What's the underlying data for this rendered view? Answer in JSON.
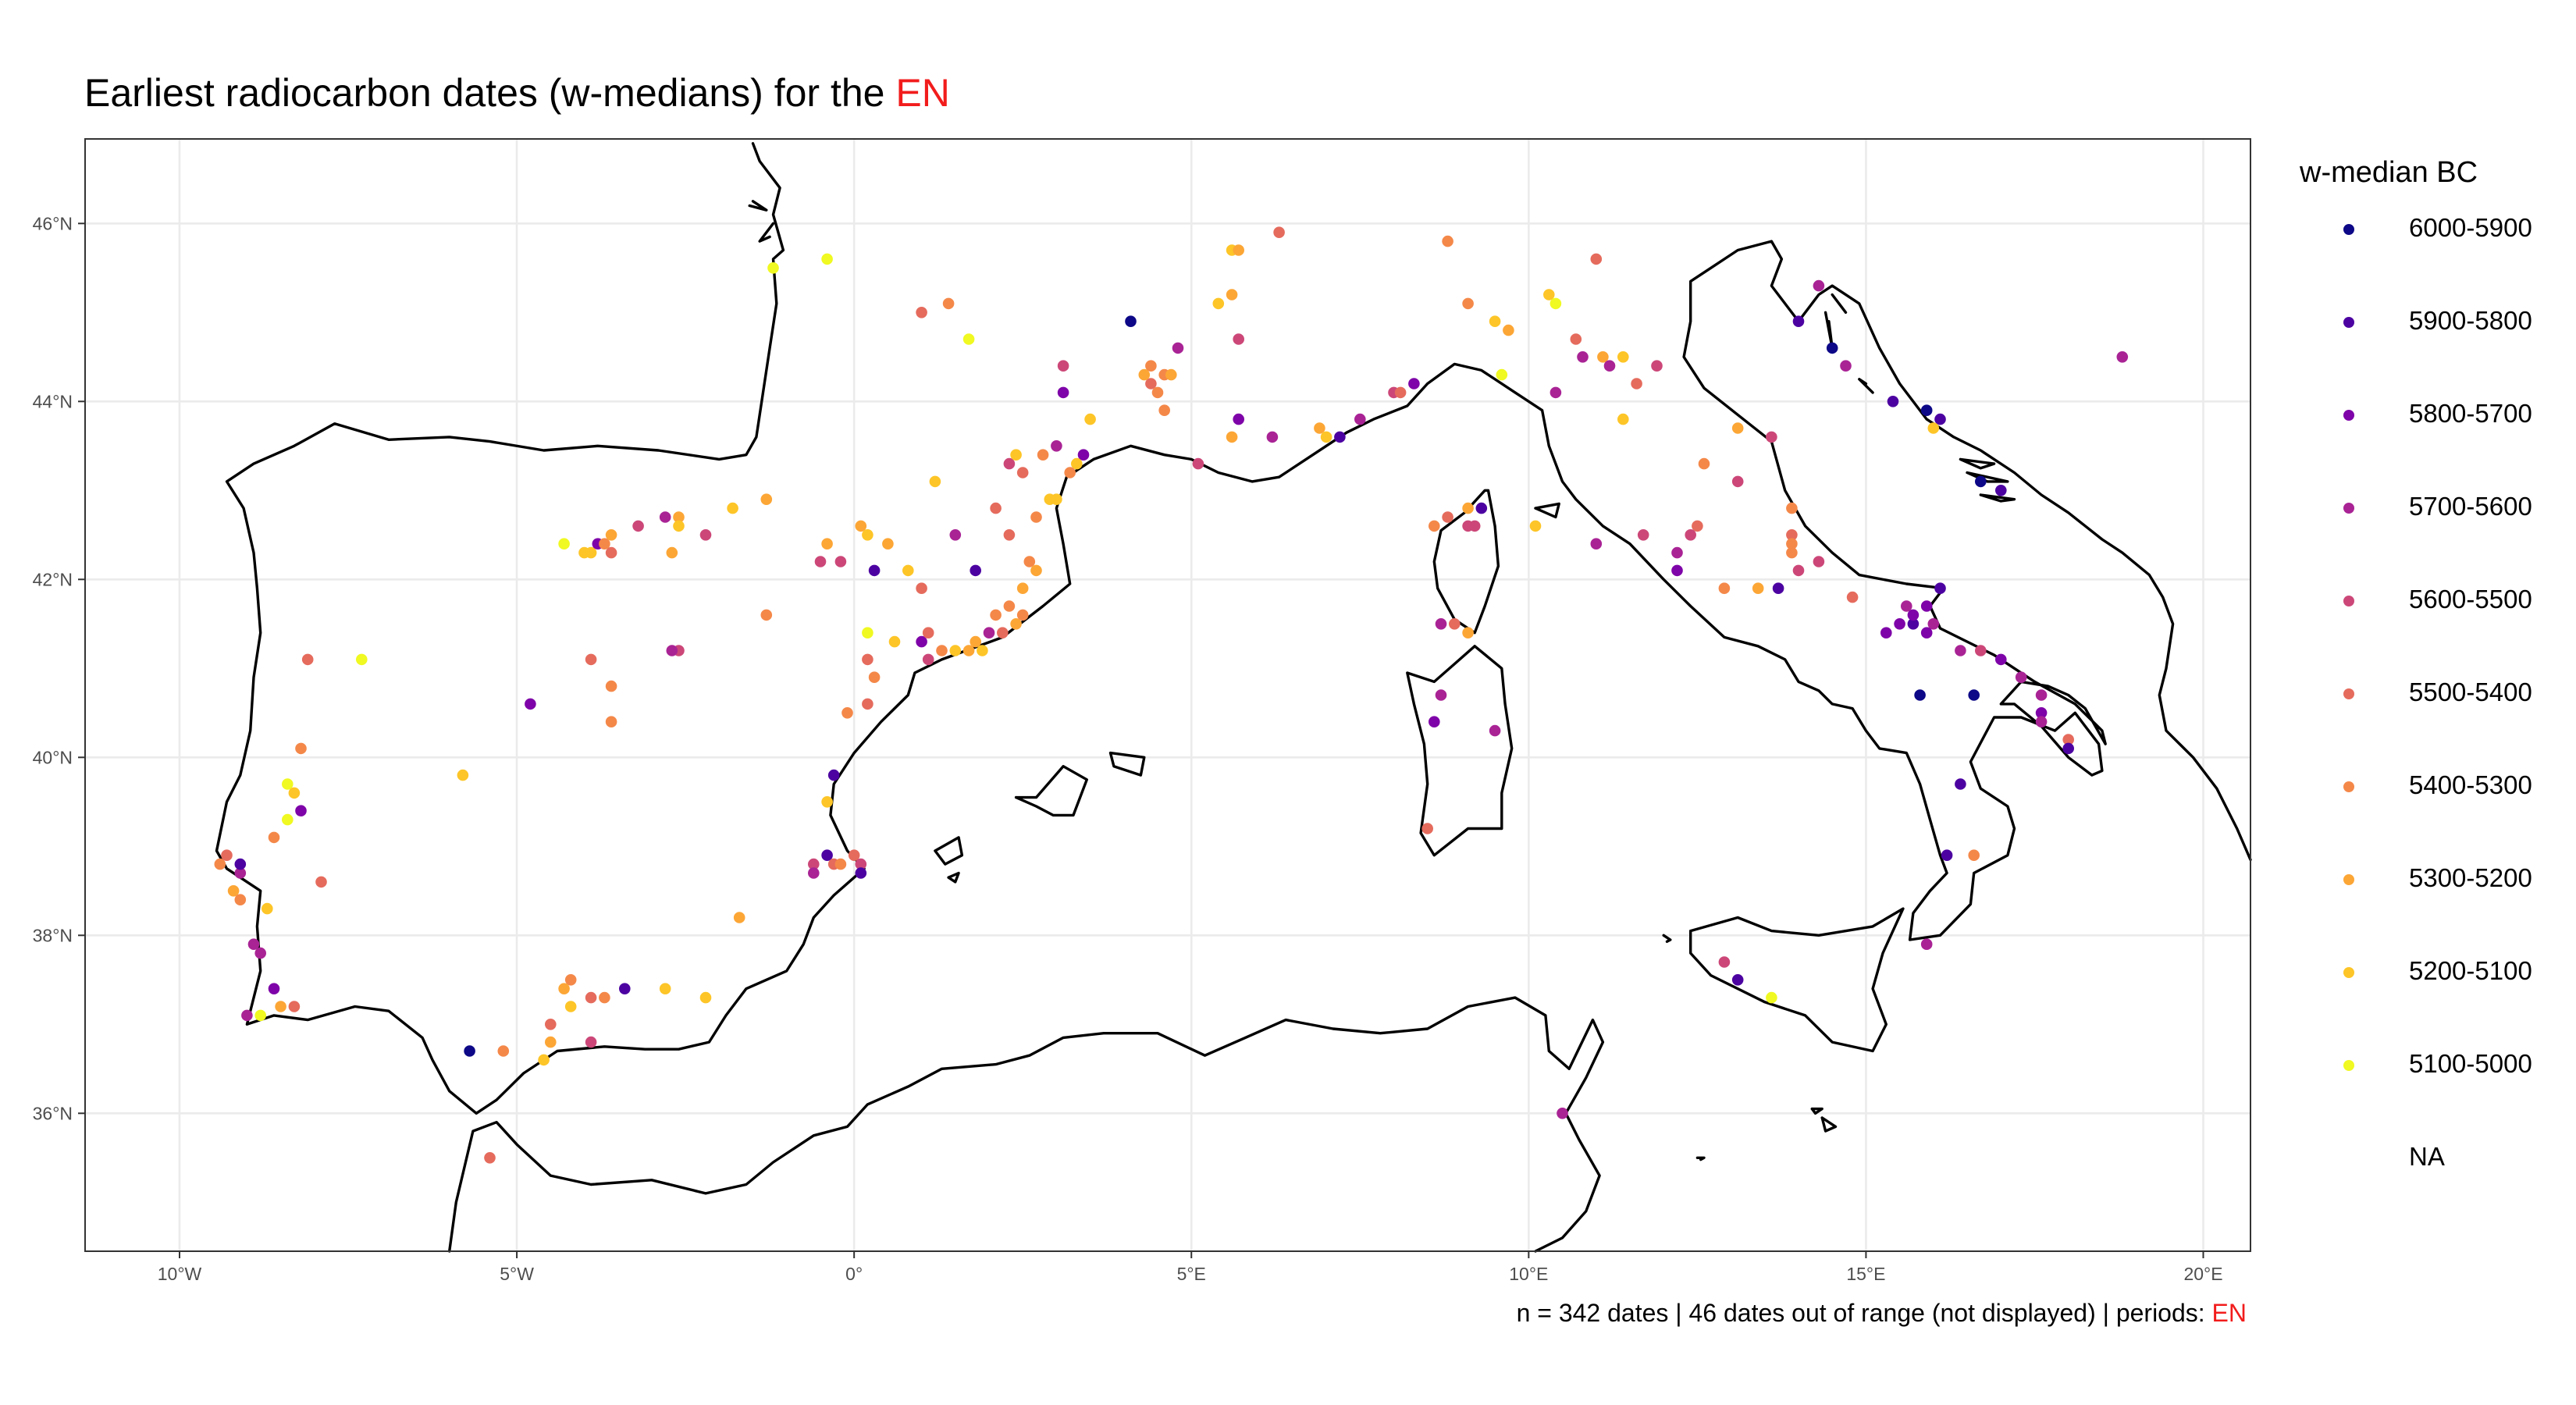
{
  "title": {
    "prefix": "Earliest radiocarbon dates (w-medians) for the ",
    "highlight": "EN"
  },
  "caption": {
    "prefix": "n = 342 dates | 46 dates out of range (not displayed) | periods: ",
    "highlight": "EN"
  },
  "colors": {
    "highlight": "#f21c1c",
    "coastline": "#000000",
    "grid": "#ebebeb"
  },
  "legend": {
    "title": "w-median BC",
    "items": [
      {
        "label": "6000-5900",
        "color": "#0d0887"
      },
      {
        "label": "5900-5800",
        "color": "#4c02a1"
      },
      {
        "label": "5800-5700",
        "color": "#7e03a8"
      },
      {
        "label": "5700-5600",
        "color": "#a92395"
      },
      {
        "label": "5600-5500",
        "color": "#cc4778"
      },
      {
        "label": "5500-5400",
        "color": "#e56b5d"
      },
      {
        "label": "5400-5300",
        "color": "#f48849"
      },
      {
        "label": "5300-5200",
        "color": "#fca636"
      },
      {
        "label": "5200-5100",
        "color": "#fdc527"
      },
      {
        "label": "5100-5000",
        "color": "#f0f921"
      },
      {
        "label": "NA",
        "color": ""
      }
    ]
  },
  "map_data": {
    "type": "scatter",
    "xlim": [
      -11.4,
      20.7
    ],
    "ylim": [
      34.45,
      46.95
    ],
    "x_ticks": [
      {
        "value": -10,
        "label": "10°W"
      },
      {
        "value": -5,
        "label": "5°W"
      },
      {
        "value": 0,
        "label": "0°"
      },
      {
        "value": 5,
        "label": "5°E"
      },
      {
        "value": 10,
        "label": "10°E"
      },
      {
        "value": 15,
        "label": "15°E"
      },
      {
        "value": 20,
        "label": "20°E"
      }
    ],
    "y_ticks": [
      {
        "value": 36,
        "label": "36°N"
      },
      {
        "value": 38,
        "label": "38°N"
      },
      {
        "value": 40,
        "label": "40°N"
      },
      {
        "value": 42,
        "label": "42°N"
      },
      {
        "value": 44,
        "label": "44°N"
      },
      {
        "value": 46,
        "label": "46°N"
      }
    ],
    "grid": true,
    "points": [
      [
        -1.2,
        45.5,
        9
      ],
      [
        -0.4,
        45.6,
        9
      ],
      [
        1.0,
        45.0,
        5
      ],
      [
        1.4,
        45.1,
        6
      ],
      [
        1.7,
        44.7,
        9
      ],
      [
        5.6,
        45.7,
        8
      ],
      [
        5.7,
        45.7,
        7
      ],
      [
        6.3,
        45.9,
        5
      ],
      [
        5.6,
        45.2,
        7
      ],
      [
        5.4,
        45.1,
        8
      ],
      [
        5.7,
        44.7,
        4
      ],
      [
        4.1,
        44.9,
        0
      ],
      [
        3.1,
        44.4,
        4
      ],
      [
        3.1,
        44.1,
        2
      ],
      [
        4.4,
        44.4,
        6
      ],
      [
        4.6,
        44.3,
        6
      ],
      [
        4.8,
        44.6,
        3
      ],
      [
        4.4,
        44.2,
        5
      ],
      [
        4.3,
        44.3,
        7
      ],
      [
        4.5,
        44.1,
        6
      ],
      [
        4.6,
        43.9,
        6
      ],
      [
        4.7,
        44.3,
        7
      ],
      [
        3.5,
        43.8,
        8
      ],
      [
        2.3,
        43.3,
        4
      ],
      [
        2.4,
        43.4,
        8
      ],
      [
        2.5,
        43.2,
        5
      ],
      [
        3.0,
        43.5,
        3
      ],
      [
        3.4,
        43.4,
        2
      ],
      [
        3.3,
        43.3,
        8
      ],
      [
        2.8,
        43.4,
        6
      ],
      [
        3.2,
        43.2,
        6
      ],
      [
        5.1,
        43.3,
        4
      ],
      [
        5.6,
        43.6,
        7
      ],
      [
        5.7,
        43.8,
        2
      ],
      [
        6.2,
        43.6,
        3
      ],
      [
        6.9,
        43.7,
        7
      ],
      [
        7.0,
        43.6,
        8
      ],
      [
        7.2,
        43.6,
        1
      ],
      [
        7.5,
        43.8,
        3
      ],
      [
        8.0,
        44.1,
        4
      ],
      [
        8.1,
        44.1,
        5
      ],
      [
        8.3,
        44.2,
        2
      ],
      [
        8.8,
        45.8,
        6
      ],
      [
        9.1,
        45.1,
        6
      ],
      [
        9.5,
        44.9,
        8
      ],
      [
        9.7,
        44.8,
        7
      ],
      [
        10.3,
        45.2,
        8
      ],
      [
        10.4,
        45.1,
        9
      ],
      [
        10.7,
        44.7,
        5
      ],
      [
        10.8,
        44.5,
        3
      ],
      [
        11.0,
        45.6,
        5
      ],
      [
        11.1,
        44.5,
        7
      ],
      [
        11.4,
        44.5,
        8
      ],
      [
        11.2,
        44.4,
        3
      ],
      [
        11.6,
        44.2,
        5
      ],
      [
        11.9,
        44.4,
        4
      ],
      [
        10.4,
        44.1,
        3
      ],
      [
        9.6,
        44.3,
        9
      ],
      [
        11.4,
        43.8,
        8
      ],
      [
        12.6,
        43.3,
        6
      ],
      [
        13.1,
        43.7,
        7
      ],
      [
        13.6,
        43.6,
        4
      ],
      [
        14.3,
        45.3,
        3
      ],
      [
        14.0,
        44.9,
        1
      ],
      [
        14.5,
        44.6,
        0
      ],
      [
        14.7,
        44.4,
        3
      ],
      [
        15.4,
        44.0,
        1
      ],
      [
        15.9,
        43.9,
        0
      ],
      [
        16.1,
        43.8,
        1
      ],
      [
        16.0,
        43.7,
        8
      ],
      [
        18.8,
        44.5,
        3
      ],
      [
        16.7,
        43.1,
        0
      ],
      [
        17.0,
        43.0,
        1
      ],
      [
        13.1,
        43.1,
        4
      ],
      [
        13.9,
        42.5,
        5
      ],
      [
        13.9,
        42.3,
        6
      ],
      [
        13.7,
        41.9,
        1
      ],
      [
        13.9,
        42.4,
        6
      ],
      [
        14.3,
        42.2,
        4
      ],
      [
        14.0,
        42.1,
        4
      ],
      [
        14.8,
        41.8,
        5
      ],
      [
        13.9,
        42.8,
        6
      ],
      [
        12.5,
        42.6,
        5
      ],
      [
        12.4,
        42.5,
        4
      ],
      [
        12.2,
        42.3,
        3
      ],
      [
        12.2,
        42.1,
        2
      ],
      [
        11.7,
        42.5,
        4
      ],
      [
        11.0,
        42.4,
        3
      ],
      [
        12.9,
        41.9,
        6
      ],
      [
        13.4,
        41.9,
        7
      ],
      [
        8.6,
        42.6,
        6
      ],
      [
        8.8,
        42.7,
        5
      ],
      [
        9.1,
        42.8,
        7
      ],
      [
        9.1,
        42.6,
        4
      ],
      [
        9.3,
        42.8,
        1
      ],
      [
        9.2,
        42.6,
        4
      ],
      [
        10.1,
        42.6,
        8
      ],
      [
        8.9,
        41.5,
        5
      ],
      [
        9.1,
        41.4,
        7
      ],
      [
        8.7,
        41.5,
        3
      ],
      [
        8.7,
        40.7,
        3
      ],
      [
        8.6,
        40.4,
        2
      ],
      [
        9.5,
        40.3,
        3
      ],
      [
        8.5,
        39.2,
        5
      ],
      [
        15.3,
        41.4,
        2
      ],
      [
        15.5,
        41.5,
        2
      ],
      [
        15.7,
        41.5,
        1
      ],
      [
        15.6,
        41.7,
        3
      ],
      [
        15.9,
        41.7,
        2
      ],
      [
        16.0,
        41.5,
        3
      ],
      [
        15.9,
        41.4,
        2
      ],
      [
        16.1,
        41.9,
        1
      ],
      [
        15.7,
        41.6,
        2
      ],
      [
        16.4,
        41.2,
        3
      ],
      [
        16.7,
        41.2,
        4
      ],
      [
        17.0,
        41.1,
        2
      ],
      [
        17.3,
        40.9,
        3
      ],
      [
        17.6,
        40.7,
        3
      ],
      [
        17.6,
        40.5,
        2
      ],
      [
        17.6,
        40.4,
        3
      ],
      [
        18.0,
        40.2,
        5
      ],
      [
        18.0,
        40.1,
        1
      ],
      [
        15.8,
        40.7,
        0
      ],
      [
        16.6,
        40.7,
        0
      ],
      [
        16.4,
        39.7,
        1
      ],
      [
        16.6,
        38.9,
        6
      ],
      [
        16.2,
        38.9,
        1
      ],
      [
        15.9,
        37.9,
        3
      ],
      [
        13.1,
        37.5,
        1
      ],
      [
        12.9,
        37.7,
        4
      ],
      [
        13.6,
        37.3,
        9
      ],
      [
        10.5,
        36.0,
        3
      ],
      [
        -1.3,
        42.9,
        7
      ],
      [
        -0.4,
        42.4,
        7
      ],
      [
        -0.2,
        42.2,
        4
      ],
      [
        0.1,
        42.6,
        7
      ],
      [
        0.2,
        42.5,
        8
      ],
      [
        0.5,
        42.4,
        7
      ],
      [
        0.3,
        42.1,
        1
      ],
      [
        0.8,
        42.1,
        8
      ],
      [
        1.0,
        41.9,
        5
      ],
      [
        1.2,
        43.1,
        8
      ],
      [
        1.5,
        42.5,
        3
      ],
      [
        1.8,
        42.1,
        1
      ],
      [
        2.1,
        42.8,
        5
      ],
      [
        2.3,
        42.5,
        5
      ],
      [
        2.7,
        42.7,
        6
      ],
      [
        2.6,
        42.2,
        6
      ],
      [
        2.7,
        42.1,
        7
      ],
      [
        2.9,
        42.9,
        8
      ],
      [
        3.0,
        42.9,
        8
      ],
      [
        2.5,
        41.9,
        7
      ],
      [
        2.3,
        41.7,
        6
      ],
      [
        2.1,
        41.6,
        6
      ],
      [
        2.2,
        41.4,
        5
      ],
      [
        2.0,
        41.4,
        3
      ],
      [
        1.8,
        41.3,
        7
      ],
      [
        1.9,
        41.2,
        8
      ],
      [
        2.4,
        41.5,
        7
      ],
      [
        2.5,
        41.6,
        6
      ],
      [
        1.5,
        41.2,
        8
      ],
      [
        1.7,
        41.2,
        7
      ],
      [
        1.3,
        41.2,
        6
      ],
      [
        1.1,
        41.1,
        4
      ],
      [
        1.0,
        41.3,
        2
      ],
      [
        1.1,
        41.4,
        5
      ],
      [
        0.6,
        41.3,
        8
      ],
      [
        0.2,
        41.4,
        9
      ],
      [
        0.2,
        41.1,
        5
      ],
      [
        0.3,
        40.9,
        6
      ],
      [
        0.2,
        40.6,
        5
      ],
      [
        -0.1,
        40.5,
        6
      ],
      [
        -0.3,
        39.8,
        1
      ],
      [
        -0.4,
        39.5,
        8
      ],
      [
        -0.6,
        38.8,
        4
      ],
      [
        -0.6,
        38.7,
        3
      ],
      [
        -0.4,
        38.9,
        1
      ],
      [
        -0.3,
        38.8,
        5
      ],
      [
        0.0,
        38.9,
        5
      ],
      [
        -0.2,
        38.8,
        6
      ],
      [
        0.1,
        38.8,
        4
      ],
      [
        0.1,
        38.7,
        1
      ],
      [
        -1.7,
        38.2,
        7
      ],
      [
        -2.2,
        37.3,
        8
      ],
      [
        -2.8,
        37.4,
        8
      ],
      [
        -3.4,
        37.4,
        1
      ],
      [
        -3.7,
        37.3,
        6
      ],
      [
        -3.9,
        37.3,
        5
      ],
      [
        -4.2,
        37.5,
        6
      ],
      [
        -4.3,
        37.4,
        7
      ],
      [
        -4.2,
        37.2,
        8
      ],
      [
        -4.5,
        37.0,
        5
      ],
      [
        -4.5,
        36.8,
        7
      ],
      [
        -4.6,
        36.6,
        8
      ],
      [
        -3.9,
        36.8,
        4
      ],
      [
        -5.2,
        36.7,
        6
      ],
      [
        -5.7,
        36.7,
        0
      ],
      [
        -5.4,
        35.5,
        5
      ],
      [
        -5.8,
        39.8,
        8
      ],
      [
        -4.8,
        40.6,
        2
      ],
      [
        -3.9,
        41.1,
        5
      ],
      [
        -3.6,
        40.8,
        6
      ],
      [
        -3.6,
        40.4,
        6
      ],
      [
        -2.6,
        41.2,
        4
      ],
      [
        -2.7,
        41.2,
        3
      ],
      [
        -4.3,
        42.4,
        9
      ],
      [
        -4.0,
        42.3,
        8
      ],
      [
        -3.9,
        42.3,
        8
      ],
      [
        -3.8,
        42.4,
        2
      ],
      [
        -3.7,
        42.4,
        6
      ],
      [
        -3.6,
        42.3,
        5
      ],
      [
        -3.6,
        42.5,
        7
      ],
      [
        -3.2,
        42.6,
        4
      ],
      [
        -2.8,
        42.7,
        3
      ],
      [
        -2.6,
        42.7,
        7
      ],
      [
        -2.6,
        42.6,
        8
      ],
      [
        -2.2,
        42.5,
        4
      ],
      [
        -1.8,
        42.8,
        8
      ],
      [
        -2.7,
        42.3,
        7
      ],
      [
        -1.3,
        41.6,
        6
      ],
      [
        -0.5,
        42.2,
        4
      ],
      [
        -8.1,
        41.1,
        5
      ],
      [
        -7.3,
        41.1,
        9
      ],
      [
        -8.2,
        40.1,
        6
      ],
      [
        -8.4,
        39.7,
        9
      ],
      [
        -8.3,
        39.6,
        8
      ],
      [
        -8.2,
        39.4,
        2
      ],
      [
        -8.4,
        39.3,
        9
      ],
      [
        -8.6,
        39.1,
        6
      ],
      [
        -7.9,
        38.6,
        5
      ],
      [
        -8.7,
        38.3,
        8
      ],
      [
        -9.4,
        38.8,
        6
      ],
      [
        -9.3,
        38.9,
        5
      ],
      [
        -9.1,
        38.7,
        3
      ],
      [
        -9.1,
        38.8,
        1
      ],
      [
        -9.2,
        38.5,
        7
      ],
      [
        -9.1,
        38.4,
        6
      ],
      [
        -8.9,
        37.9,
        3
      ],
      [
        -8.8,
        37.8,
        3
      ],
      [
        -8.6,
        37.4,
        2
      ],
      [
        -8.5,
        37.2,
        7
      ],
      [
        -8.3,
        37.2,
        5
      ],
      [
        -8.8,
        37.1,
        9
      ],
      [
        -9.0,
        37.1,
        3
      ]
    ]
  }
}
